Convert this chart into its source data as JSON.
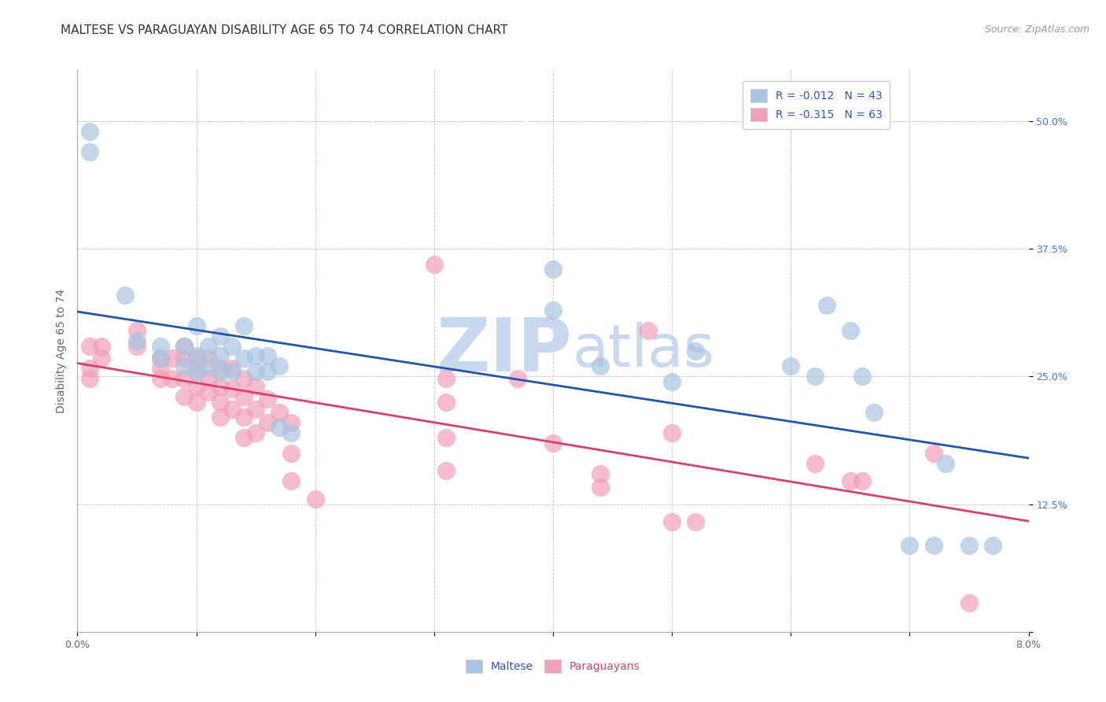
{
  "title": "MALTESE VS PARAGUAYAN DISABILITY AGE 65 TO 74 CORRELATION CHART",
  "source": "Source: ZipAtlas.com",
  "ylabel": "Disability Age 65 to 74",
  "xlim": [
    0.0,
    0.08
  ],
  "ylim": [
    0.0,
    0.55
  ],
  "xtick_positions": [
    0.0,
    0.01,
    0.02,
    0.03,
    0.04,
    0.05,
    0.06,
    0.07,
    0.08
  ],
  "xtick_labels": [
    "0.0%",
    "",
    "",
    "",
    "",
    "",
    "",
    "",
    "8.0%"
  ],
  "ytick_positions": [
    0.0,
    0.125,
    0.25,
    0.375,
    0.5
  ],
  "ytick_labels": [
    "",
    "12.5%",
    "25.0%",
    "37.5%",
    "50.0%"
  ],
  "maltese_color": "#a8c4e0",
  "paraguayan_color": "#f0a0b8",
  "maltese_line_color": "#2255aa",
  "paraguayan_line_color": "#d84070",
  "background_color": "#ffffff",
  "grid_color": "#cccccc",
  "watermark_color": "#c8d8ee",
  "title_fontsize": 11,
  "axis_label_fontsize": 10,
  "tick_fontsize": 9,
  "legend_fontsize": 10,
  "source_fontsize": 9,
  "maltese_points": [
    [
      0.001,
      0.49
    ],
    [
      0.001,
      0.47
    ],
    [
      0.004,
      0.33
    ],
    [
      0.005,
      0.285
    ],
    [
      0.007,
      0.28
    ],
    [
      0.007,
      0.268
    ],
    [
      0.009,
      0.28
    ],
    [
      0.009,
      0.26
    ],
    [
      0.01,
      0.3
    ],
    [
      0.01,
      0.27
    ],
    [
      0.01,
      0.255
    ],
    [
      0.011,
      0.28
    ],
    [
      0.011,
      0.26
    ],
    [
      0.012,
      0.29
    ],
    [
      0.012,
      0.27
    ],
    [
      0.012,
      0.255
    ],
    [
      0.013,
      0.28
    ],
    [
      0.013,
      0.255
    ],
    [
      0.014,
      0.3
    ],
    [
      0.014,
      0.268
    ],
    [
      0.015,
      0.27
    ],
    [
      0.015,
      0.255
    ],
    [
      0.016,
      0.27
    ],
    [
      0.016,
      0.255
    ],
    [
      0.017,
      0.26
    ],
    [
      0.017,
      0.2
    ],
    [
      0.018,
      0.195
    ],
    [
      0.04,
      0.355
    ],
    [
      0.04,
      0.315
    ],
    [
      0.044,
      0.26
    ],
    [
      0.05,
      0.245
    ],
    [
      0.052,
      0.275
    ],
    [
      0.06,
      0.26
    ],
    [
      0.062,
      0.25
    ],
    [
      0.063,
      0.32
    ],
    [
      0.065,
      0.295
    ],
    [
      0.066,
      0.25
    ],
    [
      0.067,
      0.215
    ],
    [
      0.07,
      0.085
    ],
    [
      0.072,
      0.085
    ],
    [
      0.073,
      0.165
    ],
    [
      0.075,
      0.085
    ],
    [
      0.077,
      0.085
    ]
  ],
  "paraguayan_points": [
    [
      0.001,
      0.28
    ],
    [
      0.001,
      0.258
    ],
    [
      0.001,
      0.248
    ],
    [
      0.002,
      0.28
    ],
    [
      0.002,
      0.268
    ],
    [
      0.005,
      0.295
    ],
    [
      0.005,
      0.28
    ],
    [
      0.007,
      0.268
    ],
    [
      0.007,
      0.258
    ],
    [
      0.007,
      0.248
    ],
    [
      0.008,
      0.268
    ],
    [
      0.008,
      0.248
    ],
    [
      0.009,
      0.28
    ],
    [
      0.009,
      0.268
    ],
    [
      0.009,
      0.248
    ],
    [
      0.009,
      0.23
    ],
    [
      0.01,
      0.268
    ],
    [
      0.01,
      0.258
    ],
    [
      0.01,
      0.24
    ],
    [
      0.01,
      0.225
    ],
    [
      0.011,
      0.268
    ],
    [
      0.011,
      0.248
    ],
    [
      0.011,
      0.235
    ],
    [
      0.012,
      0.258
    ],
    [
      0.012,
      0.24
    ],
    [
      0.012,
      0.225
    ],
    [
      0.012,
      0.21
    ],
    [
      0.013,
      0.258
    ],
    [
      0.013,
      0.238
    ],
    [
      0.013,
      0.218
    ],
    [
      0.014,
      0.248
    ],
    [
      0.014,
      0.23
    ],
    [
      0.014,
      0.21
    ],
    [
      0.014,
      0.19
    ],
    [
      0.015,
      0.24
    ],
    [
      0.015,
      0.218
    ],
    [
      0.015,
      0.195
    ],
    [
      0.016,
      0.228
    ],
    [
      0.016,
      0.205
    ],
    [
      0.017,
      0.215
    ],
    [
      0.018,
      0.205
    ],
    [
      0.018,
      0.175
    ],
    [
      0.018,
      0.148
    ],
    [
      0.02,
      0.13
    ],
    [
      0.03,
      0.36
    ],
    [
      0.031,
      0.248
    ],
    [
      0.031,
      0.225
    ],
    [
      0.031,
      0.19
    ],
    [
      0.031,
      0.158
    ],
    [
      0.037,
      0.248
    ],
    [
      0.04,
      0.185
    ],
    [
      0.044,
      0.155
    ],
    [
      0.044,
      0.142
    ],
    [
      0.048,
      0.295
    ],
    [
      0.05,
      0.195
    ],
    [
      0.05,
      0.108
    ],
    [
      0.052,
      0.108
    ],
    [
      0.062,
      0.165
    ],
    [
      0.065,
      0.148
    ],
    [
      0.066,
      0.148
    ],
    [
      0.072,
      0.175
    ],
    [
      0.075,
      0.028
    ]
  ]
}
